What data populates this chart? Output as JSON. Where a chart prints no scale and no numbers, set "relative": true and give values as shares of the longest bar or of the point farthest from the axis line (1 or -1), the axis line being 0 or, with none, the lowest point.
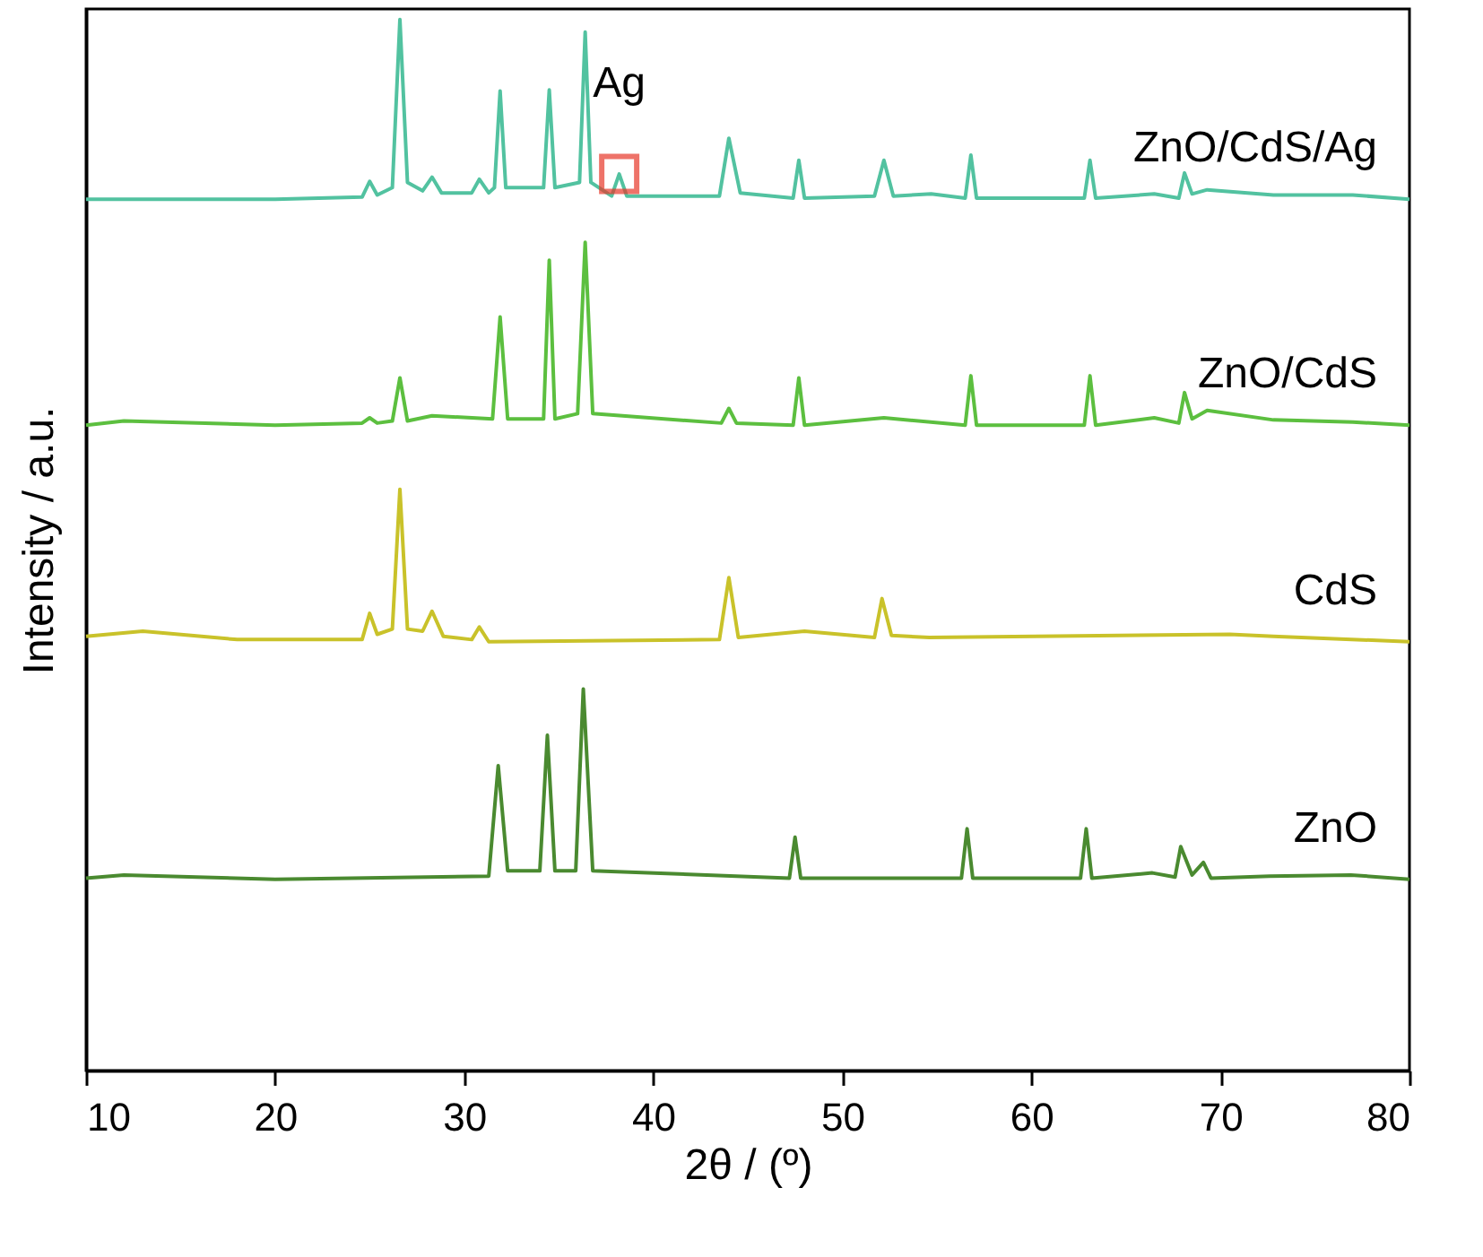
{
  "chart_data": {
    "type": "line",
    "xlabel": "2θ / (º)",
    "ylabel": "Intensity / a.u.",
    "relative": true,
    "xlim": [
      10,
      80
    ],
    "xticks": [
      10,
      20,
      30,
      40,
      50,
      60,
      70,
      80
    ],
    "grid": false,
    "legend": false,
    "marker": "none",
    "line_style": "solid",
    "tick_labels": "x",
    "annotations": [
      {
        "text": "Ag",
        "x": 38.2,
        "y": 0.853
      }
    ],
    "series": [
      {
        "name": "ZnO/CdS/Ag",
        "color": "#52c2a0",
        "x": [
          10,
          20,
          24.6,
          25.0,
          25.4,
          26.2,
          26.6,
          27.0,
          27.8,
          28.3,
          28.8,
          30.4,
          30.8,
          31.3,
          31.6,
          31.9,
          32.2,
          34.2,
          34.5,
          34.8,
          36.1,
          36.4,
          36.7,
          37.8,
          38.2,
          38.6,
          43.5,
          44.0,
          44.6,
          47.4,
          47.7,
          48.0,
          51.7,
          52.2,
          52.7,
          54.7,
          56.5,
          56.8,
          57.1,
          62.8,
          63.1,
          63.4,
          66.5,
          67.8,
          68.1,
          68.5,
          69.3,
          72.8,
          77,
          80
        ],
        "values": [
          0.829,
          0.829,
          0.831,
          0.846,
          0.833,
          0.84,
          1.0,
          0.845,
          0.837,
          0.85,
          0.835,
          0.835,
          0.848,
          0.835,
          0.84,
          0.932,
          0.84,
          0.84,
          0.933,
          0.84,
          0.845,
          0.988,
          0.845,
          0.832,
          0.853,
          0.832,
          0.832,
          0.887,
          0.835,
          0.83,
          0.866,
          0.83,
          0.832,
          0.866,
          0.832,
          0.834,
          0.83,
          0.871,
          0.83,
          0.83,
          0.866,
          0.83,
          0.834,
          0.83,
          0.854,
          0.834,
          0.838,
          0.833,
          0.833,
          0.829
        ]
      },
      {
        "name": "ZnO/CdS",
        "color": "#5cbf3f",
        "x": [
          10,
          12,
          20,
          24.6,
          25.0,
          25.4,
          26.2,
          26.6,
          27.0,
          28.3,
          31.5,
          31.9,
          32.3,
          34.2,
          34.5,
          34.8,
          36.0,
          36.4,
          36.8,
          43.6,
          44.0,
          44.4,
          47.4,
          47.7,
          48.0,
          52.2,
          56.5,
          56.8,
          57.1,
          62.8,
          63.1,
          63.4,
          66.5,
          67.8,
          68.1,
          68.5,
          69.3,
          72.8,
          77,
          80
        ],
        "values": [
          0.614,
          0.618,
          0.614,
          0.616,
          0.621,
          0.616,
          0.618,
          0.659,
          0.618,
          0.623,
          0.62,
          0.717,
          0.62,
          0.62,
          0.771,
          0.62,
          0.625,
          0.788,
          0.625,
          0.616,
          0.63,
          0.616,
          0.614,
          0.659,
          0.614,
          0.621,
          0.614,
          0.661,
          0.614,
          0.614,
          0.661,
          0.614,
          0.621,
          0.616,
          0.645,
          0.62,
          0.628,
          0.619,
          0.617,
          0.614
        ]
      },
      {
        "name": "CdS",
        "color": "#c9c22a",
        "x": [
          10,
          13,
          18,
          24.6,
          25.0,
          25.4,
          26.2,
          26.6,
          27.0,
          27.8,
          28.3,
          28.9,
          30.4,
          30.8,
          31.3,
          43.5,
          44.0,
          44.5,
          48.0,
          51.7,
          52.1,
          52.6,
          54.6,
          70.5,
          72.8,
          80
        ],
        "values": [
          0.413,
          0.418,
          0.41,
          0.41,
          0.435,
          0.415,
          0.42,
          0.553,
          0.42,
          0.418,
          0.437,
          0.413,
          0.41,
          0.422,
          0.408,
          0.41,
          0.469,
          0.412,
          0.418,
          0.412,
          0.449,
          0.414,
          0.412,
          0.415,
          0.413,
          0.408
        ]
      },
      {
        "name": "ZnO",
        "color": "#4a8a30",
        "x": [
          10,
          12,
          20,
          31.3,
          31.8,
          32.3,
          34.0,
          34.4,
          34.8,
          35.9,
          36.3,
          36.8,
          47.2,
          47.5,
          47.8,
          56.3,
          56.6,
          56.9,
          62.6,
          62.9,
          63.2,
          66.4,
          67.6,
          67.9,
          68.5,
          69.1,
          69.5,
          72.6,
          76.9,
          80
        ],
        "values": [
          0.183,
          0.186,
          0.182,
          0.185,
          0.29,
          0.19,
          0.19,
          0.319,
          0.19,
          0.19,
          0.363,
          0.19,
          0.183,
          0.222,
          0.183,
          0.183,
          0.23,
          0.183,
          0.183,
          0.23,
          0.183,
          0.188,
          0.184,
          0.213,
          0.186,
          0.198,
          0.183,
          0.185,
          0.186,
          0.182
        ]
      }
    ]
  }
}
